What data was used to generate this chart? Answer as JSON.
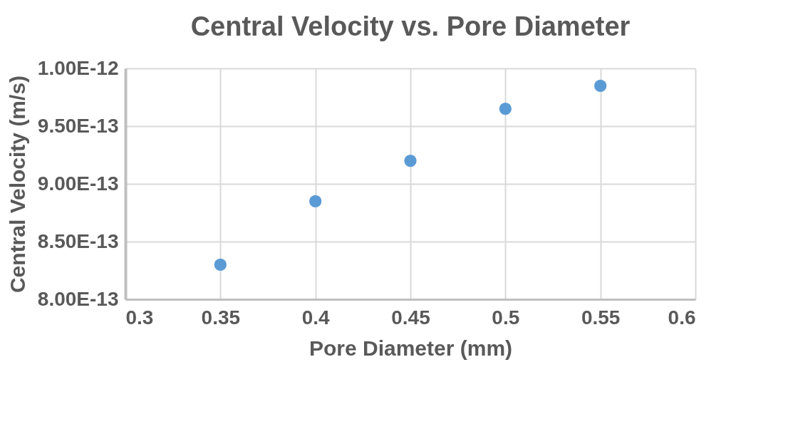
{
  "chart_data": {
    "type": "scatter",
    "title": "Central Velocity vs. Pore Diameter",
    "xlabel": "Pore Diameter (mm)",
    "ylabel": "Central Velocity (m/s)",
    "x": [
      0.35,
      0.4,
      0.45,
      0.5,
      0.55
    ],
    "series": [
      {
        "color": "#5b9bd5",
        "values": [
          8.3e-13,
          8.85e-13,
          9.2e-13,
          9.65e-13,
          9.85e-13
        ]
      }
    ],
    "xlim": [
      0.3,
      0.6
    ],
    "xticks": [
      0.3,
      0.35,
      0.4,
      0.45,
      0.5,
      0.55,
      0.6
    ],
    "ylim": [
      8e-13,
      1e-12
    ],
    "yticks": [
      {
        "value": 8e-13,
        "label": "8.00E-13"
      },
      {
        "value": 8.5e-13,
        "label": "8.50E-13"
      },
      {
        "value": 9e-13,
        "label": "9.00E-13"
      },
      {
        "value": 9.5e-13,
        "label": "9.50E-13"
      },
      {
        "value": 1e-12,
        "label": "1.00E-12"
      }
    ],
    "grid": true,
    "marker": "circle"
  }
}
